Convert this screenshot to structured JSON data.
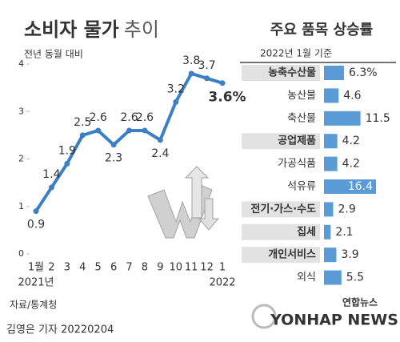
{
  "chart_data": [
    {
      "type": "line",
      "title": [
        "소비자 물가",
        "추이"
      ],
      "subtitle": "전년 동월 대비",
      "categories": [
        "1월",
        "2",
        "3",
        "4",
        "5",
        "6",
        "7",
        "8",
        "9",
        "10",
        "11",
        "12",
        "1"
      ],
      "period_labels": [
        "2021년",
        "2022"
      ],
      "values": [
        0.9,
        1.4,
        1.9,
        2.5,
        2.6,
        2.3,
        2.6,
        2.6,
        2.4,
        3.2,
        3.8,
        3.7,
        3.6
      ],
      "value_labels": [
        "0.9",
        "1.4",
        "1.9",
        "2.5",
        "2.6",
        "2.3",
        "2.6",
        "2.6",
        "2.4",
        "3.2",
        "3.8",
        "3.7",
        "3.6%"
      ],
      "color": "#3b7fc4",
      "ylim": [
        0,
        4
      ],
      "yticks": [
        0,
        1,
        2,
        3,
        4
      ]
    },
    {
      "type": "hbar",
      "title": "주요 품목 상승률",
      "subtitle": "2022년 1월 기준",
      "categories": [
        "농축수산물",
        "농산물",
        "축산물",
        "공업제품",
        "가공식품",
        "석유류",
        "전기·가스·수도",
        "집세",
        "개인서비스",
        "외식"
      ],
      "values": [
        6.3,
        4.6,
        11.5,
        4.2,
        4.2,
        16.4,
        2.9,
        2.1,
        3.9,
        5.5
      ],
      "value_labels": [
        "6.3%",
        "4.6",
        "11.5",
        "4.2",
        "4.2",
        "16.4",
        "2.9",
        "2.1",
        "3.9",
        "5.5"
      ],
      "emphasis": [
        true,
        false,
        false,
        true,
        false,
        false,
        true,
        true,
        true,
        false
      ],
      "color": "#5b9bd5"
    }
  ],
  "footer": {
    "source": "자료/통계청",
    "credit": "김영은 기자  20220204",
    "logo": "연합뉴스",
    "logo_en": "YONHAP NEWS"
  }
}
